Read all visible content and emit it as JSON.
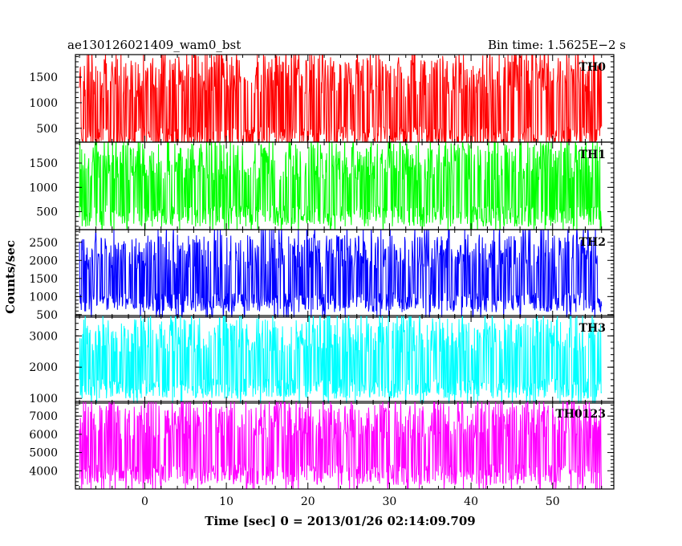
{
  "header": {
    "left_title": "ae130126021409_wam0_bst",
    "right_title": "Bin time: 1.5625E−2 s"
  },
  "axes": {
    "xlabel": "Time [sec] 0 = 2013/01/26 02:14:09.709",
    "ylabel": "Counts/sec"
  },
  "chart_data": {
    "type": "line",
    "x_range": [
      -8.5,
      57.5
    ],
    "data_x_range": [
      -8.0,
      56.0
    ],
    "x_ticks": [
      0,
      10,
      20,
      30,
      40,
      50
    ],
    "x_tick_labels": [
      "0",
      "10",
      "20",
      "30",
      "40",
      "50"
    ],
    "series": [
      {
        "name": "TH0",
        "color": "#ff0000",
        "ylim": [
          230,
          1940
        ],
        "y_ticks": [
          500,
          1000,
          1500
        ],
        "y_tick_labels": [
          "500",
          "1000",
          "1500"
        ],
        "typical_low": 200,
        "typical_high": 1700,
        "envelope": [
          [
            -8,
            900
          ],
          [
            0,
            950
          ],
          [
            10,
            1050
          ],
          [
            20,
            1000
          ],
          [
            30,
            950
          ],
          [
            40,
            1000
          ],
          [
            50,
            1050
          ],
          [
            56,
            1000
          ]
        ]
      },
      {
        "name": "TH1",
        "color": "#00ff00",
        "ylim": [
          130,
          1930
        ],
        "y_ticks": [
          500,
          1000,
          1500
        ],
        "y_tick_labels": [
          "500",
          "1000",
          "1500"
        ],
        "typical_low": 300,
        "typical_high": 1750,
        "envelope": [
          [
            -8,
            950
          ],
          [
            0,
            1000
          ],
          [
            10,
            1000
          ],
          [
            20,
            1000
          ],
          [
            30,
            1000
          ],
          [
            40,
            1000
          ],
          [
            50,
            1000
          ],
          [
            56,
            1000
          ]
        ]
      },
      {
        "name": "TH2",
        "color": "#0000ff",
        "ylim": [
          430,
          2850
        ],
        "y_ticks": [
          500,
          1000,
          1500,
          2000,
          2500
        ],
        "y_tick_labels": [
          "500",
          "1000",
          "1500",
          "2000",
          "2500"
        ],
        "typical_low": 700,
        "typical_high": 2500,
        "envelope": [
          [
            -8,
            1550
          ],
          [
            0,
            1600
          ],
          [
            10,
            1600
          ],
          [
            20,
            1600
          ],
          [
            30,
            1600
          ],
          [
            40,
            1600
          ],
          [
            50,
            1600
          ],
          [
            56,
            1600
          ]
        ]
      },
      {
        "name": "TH3",
        "color": "#00ffff",
        "ylim": [
          850,
          3650
        ],
        "y_ticks": [
          1000,
          2000,
          3000
        ],
        "y_tick_labels": [
          "1000",
          "2000",
          "3000"
        ],
        "typical_low": 1150,
        "typical_high": 3300,
        "envelope": [
          [
            -8,
            2200
          ],
          [
            0,
            2250
          ],
          [
            10,
            2250
          ],
          [
            20,
            2250
          ],
          [
            30,
            2250
          ],
          [
            40,
            2250
          ],
          [
            50,
            2250
          ],
          [
            56,
            2250
          ]
        ]
      },
      {
        "name": "TH0123",
        "color": "#ff00ff",
        "ylim": [
          3000,
          7800
        ],
        "y_ticks": [
          4000,
          5000,
          6000,
          7000
        ],
        "y_tick_labels": [
          "4000",
          "5000",
          "6000",
          "7000"
        ],
        "typical_low": 3500,
        "typical_high": 7300,
        "envelope": [
          [
            -8,
            5300
          ],
          [
            0,
            5350
          ],
          [
            10,
            5400
          ],
          [
            20,
            5350
          ],
          [
            30,
            5350
          ],
          [
            40,
            5350
          ],
          [
            50,
            5400
          ],
          [
            56,
            5400
          ]
        ]
      }
    ]
  }
}
